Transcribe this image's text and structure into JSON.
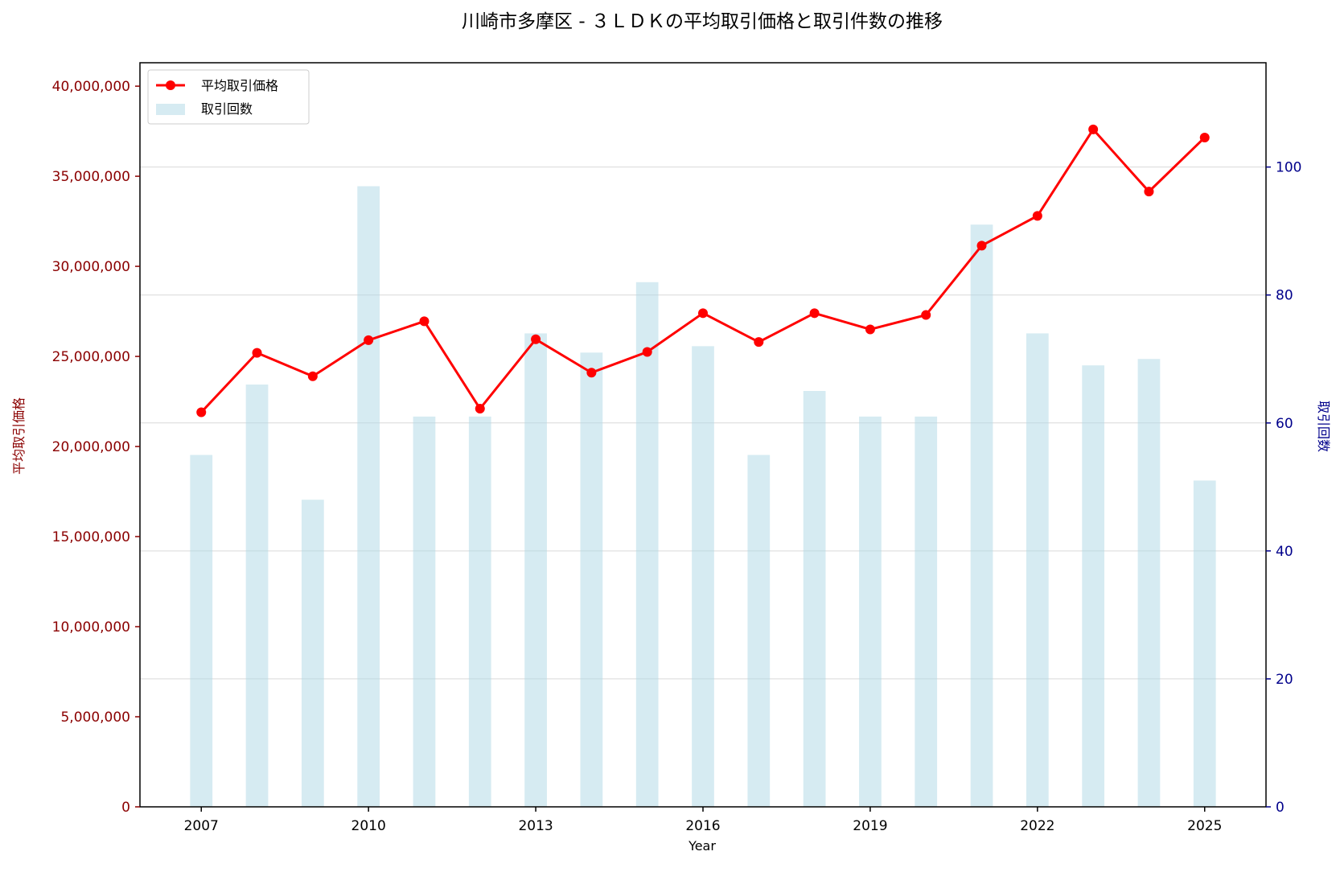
{
  "colors": {
    "price_line": "#ff0000",
    "count_bar": "#add8e6",
    "left_axis": "#8b0000",
    "right_axis": "#00008b",
    "grid": "#d9d9d9",
    "text": "#000000"
  },
  "chart_data": {
    "type": "bar",
    "title": "川崎市多摩区 - ３ＬＤＫの平均取引価格と取引件数の推移",
    "xlabel": "Year",
    "ylabel_left": "平均取引価格",
    "ylabel_right": "取引回数",
    "x": [
      2007,
      2008,
      2009,
      2010,
      2011,
      2012,
      2013,
      2014,
      2015,
      2016,
      2017,
      2018,
      2019,
      2020,
      2021,
      2022,
      2023,
      2024,
      2025
    ],
    "xlim": [
      2005.9,
      2026.1
    ],
    "x_ticks": [
      2007,
      2010,
      2013,
      2016,
      2019,
      2022,
      2025
    ],
    "series": [
      {
        "name": "平均取引価格",
        "type": "line",
        "axis": "left",
        "color": "#ff0000",
        "marker": "circle",
        "values": [
          21900000,
          25200000,
          23900000,
          25900000,
          26950000,
          22100000,
          25950000,
          24100000,
          25250000,
          27400000,
          25800000,
          27400000,
          26500000,
          27300000,
          31150000,
          32800000,
          37600000,
          34150000,
          37150000
        ]
      },
      {
        "name": "取引回数",
        "type": "bar",
        "axis": "right",
        "color": "#add8e6",
        "values": [
          55,
          66,
          48,
          97,
          61,
          61,
          74,
          71,
          82,
          72,
          55,
          65,
          61,
          61,
          91,
          74,
          69,
          70,
          51
        ]
      }
    ],
    "ylim_left": [
      0,
      41300000
    ],
    "y_ticks_left": [
      0,
      5000000,
      10000000,
      15000000,
      20000000,
      25000000,
      30000000,
      35000000,
      40000000
    ],
    "y_tick_labels_left": [
      "0",
      "5,000,000",
      "10,000,000",
      "15,000,000",
      "20,000,000",
      "25,000,000",
      "30,000,000",
      "35,000,000",
      "40,000,000"
    ],
    "ylim_right": [
      0,
      116.3
    ],
    "y_ticks_right": [
      0,
      20,
      40,
      60,
      80,
      100
    ],
    "y_tick_labels_right": [
      "0",
      "20",
      "40",
      "60",
      "80",
      "100"
    ],
    "grid": "horizontal on right axis",
    "legend_position": "top-left"
  }
}
